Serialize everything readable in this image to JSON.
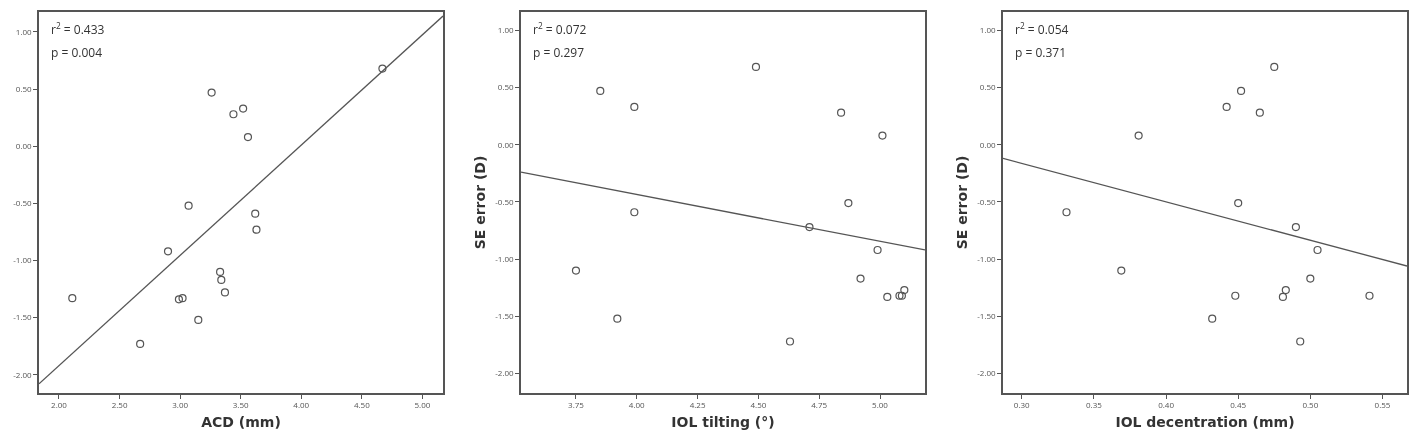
{
  "chart_data": [
    {
      "type": "scatter",
      "xlabel": "ACD (mm)",
      "annotations": [
        "r$^{2}$ = 0.433",
        "p = 0.004"
      ],
      "marker": "circle",
      "grid": false,
      "legend": false,
      "xlim": [
        1.835,
        5.17
      ],
      "ylim": [
        -2.16,
        1.175
      ],
      "xticks": [
        {
          "value": 2,
          "label": "2.00"
        },
        {
          "value": 2.5,
          "label": "2.50"
        },
        {
          "value": 3,
          "label": "3.00"
        },
        {
          "value": 3.5,
          "label": "3.50"
        },
        {
          "value": 4,
          "label": "4.00"
        },
        {
          "value": 4.5,
          "label": "4.50"
        },
        {
          "value": 5,
          "label": "5.00"
        }
      ],
      "yticks": [
        {
          "value": 1,
          "label": "1.00"
        },
        {
          "value": 0.5,
          "label": "0.50"
        },
        {
          "value": 0,
          "label": "0.00"
        },
        {
          "value": -0.5,
          "label": "-0.50"
        },
        {
          "value": -1,
          "label": "-1.00"
        },
        {
          "value": -1.5,
          "label": "-1.50"
        },
        {
          "value": -2,
          "label": "-2.00"
        }
      ],
      "series": [
        {
          "color": "#555555",
          "x": [
            2.11,
            2.67,
            2.9,
            2.99,
            3.02,
            3.07,
            3.15,
            3.26,
            3.33,
            3.34,
            3.37,
            3.44,
            3.52,
            3.56,
            3.62,
            3.63,
            4.67
          ],
          "values": [
            -1.33,
            -1.73,
            -0.92,
            -1.34,
            -1.33,
            -0.52,
            -1.52,
            0.47,
            -1.1,
            -1.17,
            -1.28,
            0.28,
            0.33,
            0.08,
            -0.59,
            -0.73,
            0.68
          ]
        },
        {
          "type": "line",
          "color": "#555555",
          "line_style": "solid",
          "marker": "none",
          "x": [
            1.835,
            5.17
          ],
          "values": [
            -2.08,
            1.14
          ]
        }
      ]
    },
    {
      "type": "scatter",
      "xlabel": "IOL tilting (°)",
      "ylabel": "SE error (D)",
      "annotations": [
        "r$^{2}$ = 0.072",
        "p = 0.297"
      ],
      "marker": "circle",
      "grid": false,
      "legend": false,
      "xlim": [
        3.524,
        5.185
      ],
      "ylim": [
        -2.17,
        1.16
      ],
      "xticks": [
        {
          "value": 3.75,
          "label": "3.75"
        },
        {
          "value": 4,
          "label": "4.00"
        },
        {
          "value": 4.25,
          "label": "4.25"
        },
        {
          "value": 4.5,
          "label": "4.50"
        },
        {
          "value": 4.75,
          "label": "4.75"
        },
        {
          "value": 5,
          "label": "5.00"
        }
      ],
      "yticks": [
        {
          "value": 1,
          "label": "1.00"
        },
        {
          "value": 0.5,
          "label": "0.50"
        },
        {
          "value": 0,
          "label": "0.00"
        },
        {
          "value": -0.5,
          "label": "-0.50"
        },
        {
          "value": -1,
          "label": "-1.00"
        },
        {
          "value": -1.5,
          "label": "-1.50"
        },
        {
          "value": -2,
          "label": "-2.00"
        }
      ],
      "series": [
        {
          "color": "#555555",
          "x": [
            3.75,
            3.85,
            3.92,
            3.99,
            3.99,
            4.49,
            4.63,
            4.71,
            4.84,
            4.87,
            4.92,
            4.99,
            5.01,
            5.03,
            5.08,
            5.09,
            5.1
          ],
          "values": [
            -1.1,
            0.47,
            -1.52,
            0.33,
            -0.59,
            0.68,
            -1.72,
            -0.72,
            0.28,
            -0.51,
            -1.17,
            -0.92,
            0.08,
            -1.33,
            -1.32,
            -1.32,
            -1.27
          ]
        },
        {
          "type": "line",
          "color": "#555555",
          "line_style": "solid",
          "marker": "none",
          "x": [
            3.524,
            5.185
          ],
          "values": [
            -0.24,
            -0.92
          ]
        }
      ]
    },
    {
      "type": "scatter",
      "xlabel": "IOL decentration (mm)",
      "ylabel": "SE error (D)",
      "annotations": [
        "r$^{2}$ = 0.054",
        "p = 0.371"
      ],
      "marker": "circle",
      "grid": false,
      "legend": false,
      "xlim": [
        0.287,
        0.567
      ],
      "ylim": [
        -2.17,
        1.16
      ],
      "xticks": [
        {
          "value": 0.3,
          "label": "0.30"
        },
        {
          "value": 0.35,
          "label": "0.35"
        },
        {
          "value": 0.4,
          "label": "0.40"
        },
        {
          "value": 0.45,
          "label": "0.45"
        },
        {
          "value": 0.5,
          "label": "0.50"
        },
        {
          "value": 0.55,
          "label": "0.55"
        }
      ],
      "yticks": [
        {
          "value": 1,
          "label": "1.00"
        },
        {
          "value": 0.5,
          "label": "0.50"
        },
        {
          "value": 0,
          "label": "0.00"
        },
        {
          "value": -0.5,
          "label": "-0.50"
        },
        {
          "value": -1,
          "label": "-1.00"
        },
        {
          "value": -1.5,
          "label": "-1.50"
        },
        {
          "value": -2,
          "label": "-2.00"
        }
      ],
      "series": [
        {
          "color": "#555555",
          "x": [
            0.331,
            0.369,
            0.381,
            0.432,
            0.442,
            0.448,
            0.45,
            0.452,
            0.465,
            0.475,
            0.481,
            0.483,
            0.49,
            0.493,
            0.5,
            0.505,
            0.541
          ],
          "values": [
            -0.59,
            -1.1,
            0.08,
            -1.52,
            0.33,
            -1.32,
            -0.51,
            0.47,
            0.28,
            0.68,
            -1.33,
            -1.27,
            -0.72,
            -1.72,
            -1.17,
            -0.92,
            -1.32
          ]
        },
        {
          "type": "line",
          "color": "#555555",
          "line_style": "solid",
          "marker": "none",
          "x": [
            0.287,
            0.567
          ],
          "values": [
            -0.12,
            -1.06
          ]
        }
      ]
    }
  ]
}
